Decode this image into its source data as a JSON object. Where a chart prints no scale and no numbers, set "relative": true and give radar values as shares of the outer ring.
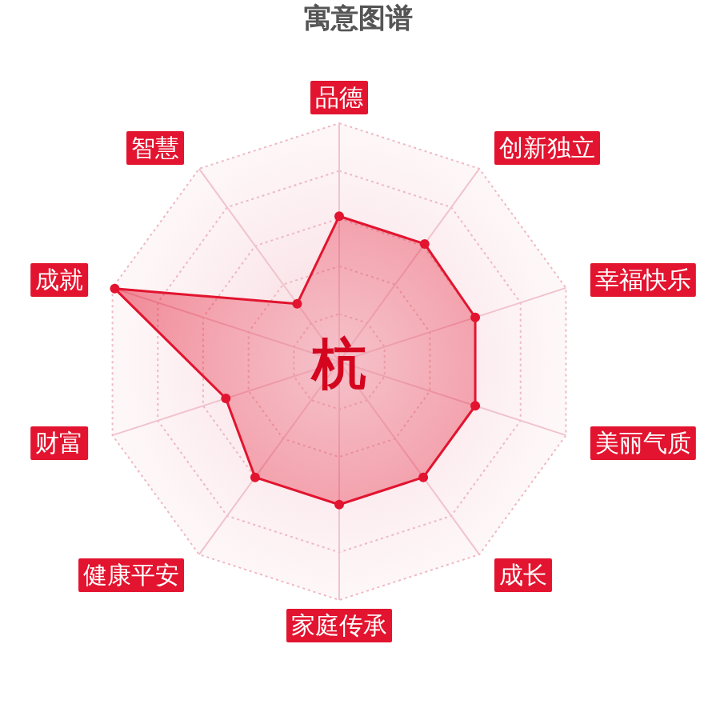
{
  "chart_data": {
    "type": "radar",
    "title": "寓意图谱",
    "categories": [
      "品德",
      "创新独立",
      "幸福快乐",
      "美丽气质",
      "成长",
      "家庭传承",
      "健康平安",
      "财富",
      "成就",
      "智慧"
    ],
    "relative": true,
    "series": [
      {
        "color": "#e2142f",
        "values": [
          0.61,
          0.61,
          0.6,
          0.6,
          0.6,
          0.6,
          0.6,
          0.5,
          0.99,
          0.3
        ]
      }
    ],
    "annotations": [
      "杭"
    ],
    "grid": true,
    "marker": "circle"
  }
}
